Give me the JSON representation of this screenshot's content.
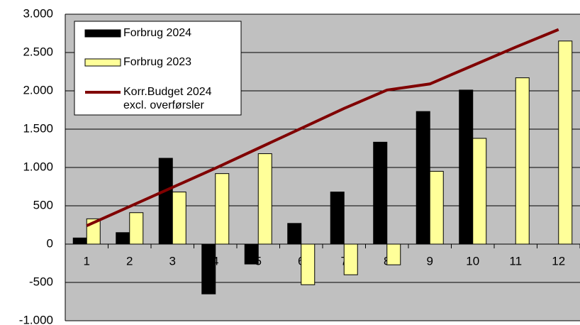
{
  "chart_data": {
    "type": "bar_line",
    "categories": [
      "1",
      "2",
      "3",
      "4",
      "5",
      "6",
      "7",
      "8",
      "9",
      "10",
      "11",
      "12"
    ],
    "series": [
      {
        "name": "Forbrug 2024",
        "type": "bar",
        "color": "#000000",
        "values": [
          80,
          150,
          1120,
          -650,
          -260,
          270,
          680,
          1330,
          1730,
          2010,
          null,
          null
        ]
      },
      {
        "name": "Forbrug 2023",
        "type": "bar",
        "color": "#ffff99",
        "values": [
          330,
          410,
          680,
          920,
          1180,
          -530,
          -400,
          -270,
          950,
          1380,
          2170,
          2650
        ]
      },
      {
        "name": "Korr.Budget 2024\nexcl. overførsler",
        "type": "line",
        "color": "#800000",
        "values": [
          240,
          490,
          740,
          990,
          1250,
          1510,
          1770,
          2010,
          2090,
          2330,
          2570,
          2800
        ]
      }
    ],
    "ylim": [
      -1000,
      3000
    ],
    "yticks": [
      {
        "value": -1000,
        "label": "-1.000"
      },
      -500,
      0,
      500,
      {
        "value": 1000,
        "label": "1.000"
      },
      {
        "value": 1500,
        "label": "1.500"
      },
      {
        "value": 2000,
        "label": "2.000"
      },
      {
        "value": 2500,
        "label": "2.500"
      },
      {
        "value": 3000,
        "label": "3.000"
      }
    ],
    "grid": true,
    "legend": "upper left"
  }
}
